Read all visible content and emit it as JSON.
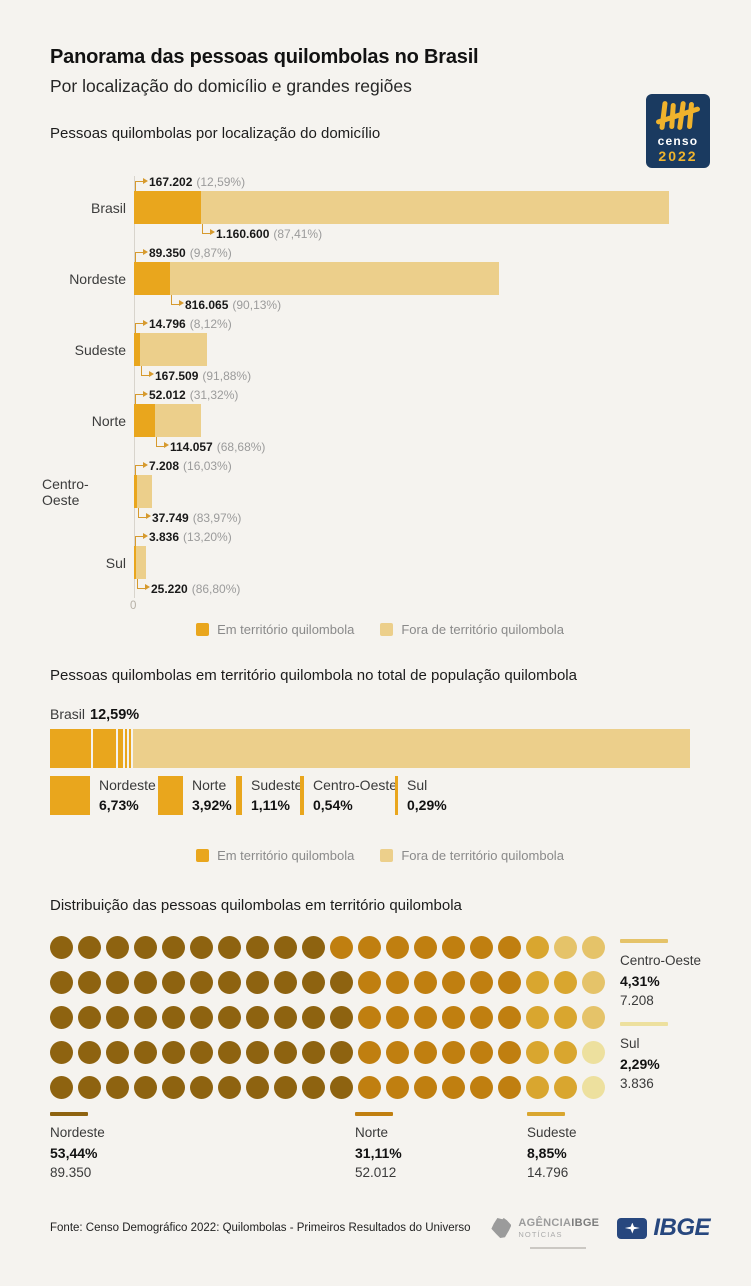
{
  "page": {
    "background": "#F5F3EF"
  },
  "header": {
    "title": "Panorama das pessoas quilombolas no Brasil",
    "subtitle": "Por localização do domicílio e grandes regiões",
    "censo_logo": {
      "word": "censo",
      "year": "2022",
      "bg": "#1A3A60",
      "accent": "#F0B32C"
    }
  },
  "legend": {
    "in_label": "Em território quilombola",
    "out_label": "Fora de território quilombola",
    "in_color": "#E9A61D",
    "out_color": "#ECCF8B"
  },
  "chart_data": [
    {
      "type": "bar",
      "orientation": "horizontal",
      "title": "Pessoas quilombolas por localização do domicílio",
      "categories": [
        "Brasil",
        "Nordeste",
        "Sudeste",
        "Norte",
        "Centro-Oeste",
        "Sul"
      ],
      "series": [
        {
          "name": "Em território quilombola",
          "color": "#E9A61D",
          "values": [
            167202,
            89350,
            14796,
            52012,
            7208,
            3836
          ],
          "value_labels": [
            "167.202",
            "89.350",
            "14.796",
            "52.012",
            "7.208",
            "3.836"
          ],
          "pct_labels": [
            "(12,59%)",
            "(9,87%)",
            "(8,12%)",
            "(31,32%)",
            "(16,03%)",
            "(13,20%)"
          ]
        },
        {
          "name": "Fora de território quilombola",
          "color": "#ECCF8B",
          "values": [
            1160600,
            816065,
            167509,
            114057,
            37749,
            25220
          ],
          "value_labels": [
            "1.160.600",
            "816.065",
            "167.509",
            "114.057",
            "37.749",
            "25.220"
          ],
          "pct_labels": [
            "(87,41%)",
            "(90,13%)",
            "(91,88%)",
            "(68,68%)",
            "(83,97%)",
            "(86,80%)"
          ]
        }
      ],
      "x_axis_zero_label": "0",
      "xlim": [
        0,
        1327802
      ],
      "legend_position": "bottom"
    },
    {
      "type": "stacked-bar",
      "title": "Pessoas quilombolas em território quilombola no total de população quilombola",
      "total_label_region": "Brasil",
      "total_label_pct": "12,59%",
      "segment_color": "#E9A61D",
      "segments": [
        {
          "region": "Nordeste",
          "pct_label": "6,73%",
          "value": 6.73
        },
        {
          "region": "Norte",
          "pct_label": "3,92%",
          "value": 3.92
        },
        {
          "region": "Sudeste",
          "pct_label": "1,11%",
          "value": 1.11
        },
        {
          "region": "Centro-Oeste",
          "pct_label": "0,54%",
          "value": 0.54
        },
        {
          "region": "Sul",
          "pct_label": "0,29%",
          "value": 0.29
        }
      ],
      "remainder": {
        "name": "Fora de território quilombola",
        "value": 87.41,
        "color": "#ECCF8B"
      }
    },
    {
      "type": "waffle",
      "title": "Distribuição das pessoas quilombolas em território quilombola",
      "rows": 5,
      "cols": 20,
      "regions": [
        {
          "name": "Nordeste",
          "pct": "53,44%",
          "count": "89.350",
          "dots": 54,
          "color": "#8E6310"
        },
        {
          "name": "Norte",
          "pct": "31,11%",
          "count": "52.012",
          "dots": 31,
          "color": "#C07F10"
        },
        {
          "name": "Sudeste",
          "pct": "8,85%",
          "count": "14.796",
          "dots": 9,
          "color": "#D9A62F"
        },
        {
          "name": "Centro-Oeste",
          "pct": "4,31%",
          "count": "7.208",
          "dots": 4,
          "color": "#E5C369"
        },
        {
          "name": "Sul",
          "pct": "2,29%",
          "count": "3.836",
          "dots": 2,
          "color": "#EDE09E"
        }
      ],
      "grid": [
        [
          0,
          0,
          0,
          0,
          0,
          0,
          0,
          0,
          0,
          0,
          1,
          1,
          1,
          1,
          1,
          1,
          1,
          2,
          3,
          3
        ],
        [
          0,
          0,
          0,
          0,
          0,
          0,
          0,
          0,
          0,
          0,
          0,
          1,
          1,
          1,
          1,
          1,
          1,
          2,
          2,
          3
        ],
        [
          0,
          0,
          0,
          0,
          0,
          0,
          0,
          0,
          0,
          0,
          0,
          1,
          1,
          1,
          1,
          1,
          1,
          2,
          2,
          3
        ],
        [
          0,
          0,
          0,
          0,
          0,
          0,
          0,
          0,
          0,
          0,
          0,
          1,
          1,
          1,
          1,
          1,
          1,
          2,
          2,
          4
        ],
        [
          0,
          0,
          0,
          0,
          0,
          0,
          0,
          0,
          0,
          0,
          0,
          1,
          1,
          1,
          1,
          1,
          1,
          2,
          2,
          4
        ]
      ]
    }
  ],
  "footer": {
    "source": "Fonte: Censo Demográfico 2022: Quilombolas - Primeiros Resultados do Universo",
    "agencia_line1": "AGÊNCIA",
    "agencia_brand": "IBGE",
    "agencia_line2": "NOTÍCIAS",
    "ibge_wordmark": "IBGE"
  }
}
